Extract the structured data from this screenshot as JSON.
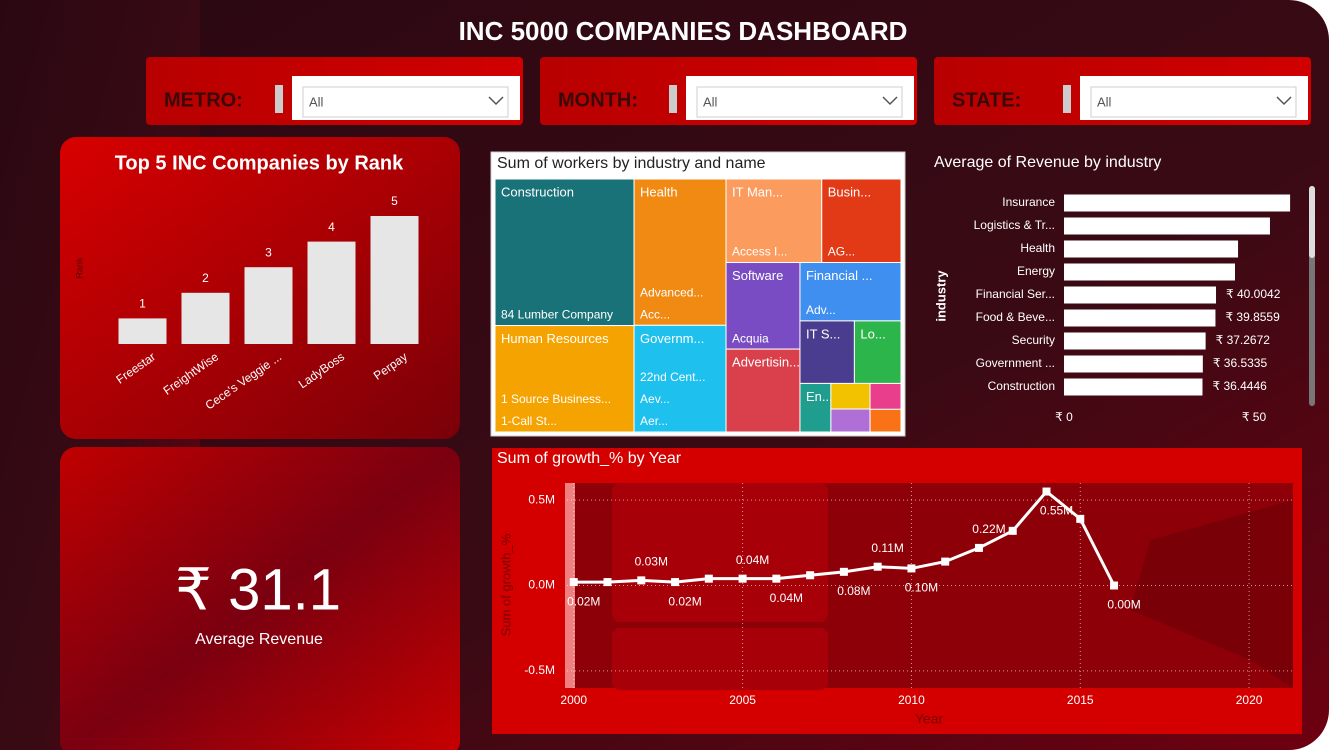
{
  "header": {
    "title": "INC 5000 COMPANIES DASHBOARD"
  },
  "filters": [
    {
      "label": "METRO:",
      "value": "All"
    },
    {
      "label": "MONTH:",
      "value": "All"
    },
    {
      "label": "STATE:",
      "value": "All"
    }
  ],
  "kpi": {
    "value": "₹ 31.1",
    "label": "Average Revenue"
  },
  "chart_data": [
    {
      "type": "bar",
      "title": "Top 5 INC Companies by Rank",
      "y_label": "Rank",
      "categories": [
        "Freestar",
        "FreightWise",
        "Cece's Veggie ...",
        "LadyBoss",
        "Perpay"
      ],
      "values": [
        1,
        2,
        3,
        4,
        5
      ],
      "color": "#e6e6e6"
    },
    {
      "type": "treemap",
      "title": "Sum of workers by industry and name",
      "groups": [
        {
          "name": "Construction",
          "value": 20350,
          "color": "#197278",
          "members": [
            "84 Lumber Company"
          ]
        },
        {
          "name": "Human Resources",
          "value": 14780,
          "color": "#f5a300",
          "members": [
            "1 Source Business...",
            "1-Call St..."
          ]
        },
        {
          "name": "Health",
          "value": 13440,
          "color": "#f08a12",
          "members": [
            "Advanced...",
            "Acc..."
          ]
        },
        {
          "name": "Governm...",
          "value": 9800,
          "color": "#1ec0ee",
          "members": [
            "22nd Cent...",
            "Aev...",
            "Aer..."
          ]
        },
        {
          "name": "IT Man...",
          "value": 7980,
          "color": "#fb9b5e",
          "members": [
            "Access I..."
          ]
        },
        {
          "name": "Busin...",
          "value": 6610,
          "color": "#e23a17",
          "members": [
            "AG..."
          ]
        },
        {
          "name": "Software",
          "value": 6390,
          "color": "#7a4cc4",
          "members": [
            "Acquia"
          ]
        },
        {
          "name": "Advertisin...",
          "value": 6120,
          "color": "#d9404b",
          "members": []
        },
        {
          "name": "Financial ...",
          "value": 5890,
          "color": "#3e8ff0",
          "members": [
            "Adv..."
          ]
        },
        {
          "name": "IT S...",
          "value": 3400,
          "color": "#4a3d8f",
          "members": []
        },
        {
          "name": "Lo...",
          "value": 2910,
          "color": "#2cb54a",
          "members": []
        },
        {
          "name": "En...",
          "value": 1500,
          "color": "#1f9d8e",
          "members": []
        },
        {
          "name": null,
          "value": 1000,
          "color": "#f2c100",
          "members": []
        },
        {
          "name": null,
          "value": 900,
          "color": "#b06fd6",
          "members": []
        },
        {
          "name": null,
          "value": 800,
          "color": "#e83e8c",
          "members": []
        },
        {
          "name": null,
          "value": 700,
          "color": "#f97316",
          "members": []
        }
      ]
    },
    {
      "type": "hbar",
      "title": "Average of Revenue by industry",
      "y_label": "industry",
      "categories": [
        "Insurance",
        "Logistics & Tr...",
        "Health",
        "Energy",
        "Financial Ser...",
        "Food & Beve...",
        "Security",
        "Government ...",
        "Construction"
      ],
      "values": [
        59.5,
        54.2,
        45.8,
        45.0,
        40.0042,
        39.8559,
        37.2672,
        36.5335,
        36.4446
      ],
      "value_labels": [
        null,
        null,
        null,
        null,
        "₹ 40.0042",
        "₹ 39.8559",
        "₹ 37.2672",
        "₹ 36.5335",
        "₹ 36.4446"
      ],
      "color": "#ffffff",
      "xlim": [
        0,
        60
      ],
      "xticks": [
        {
          "value": 0,
          "label": "₹ 0"
        },
        {
          "value": 50,
          "label": "₹ 50"
        }
      ]
    },
    {
      "type": "line",
      "title": "Sum of growth_% by Year",
      "x_label": "Year",
      "y_label": "Sum of growth_%",
      "x": [
        2000,
        2001,
        2002,
        2003,
        2004,
        2005,
        2006,
        2007,
        2008,
        2009,
        2010,
        2011,
        2012,
        2013,
        2014,
        2015,
        2016
      ],
      "values": [
        20000,
        20000,
        30000,
        20000,
        40000,
        40000,
        40000,
        60000,
        80000,
        110000,
        100000,
        140000,
        220000,
        320000,
        550000,
        390000,
        0
      ],
      "value_labels": [
        "0.02M",
        null,
        "0.03M",
        "0.02M",
        null,
        "0.04M",
        "0.04M",
        null,
        "0.08M",
        "0.11M",
        "0.10M",
        null,
        "0.22M",
        null,
        "0.55M",
        null,
        "0.00M"
      ],
      "color": "#ffffff",
      "grid": true,
      "xlim": [
        1999.8,
        2021.3
      ],
      "xticks": [
        2000,
        2005,
        2010,
        2015,
        2020
      ],
      "ylim": [
        -600000,
        600000
      ],
      "yticks": [
        {
          "value": -500000,
          "label": "-0.5M"
        },
        {
          "value": 0,
          "label": "0.0M"
        },
        {
          "value": 500000,
          "label": "0.5M"
        }
      ]
    }
  ]
}
